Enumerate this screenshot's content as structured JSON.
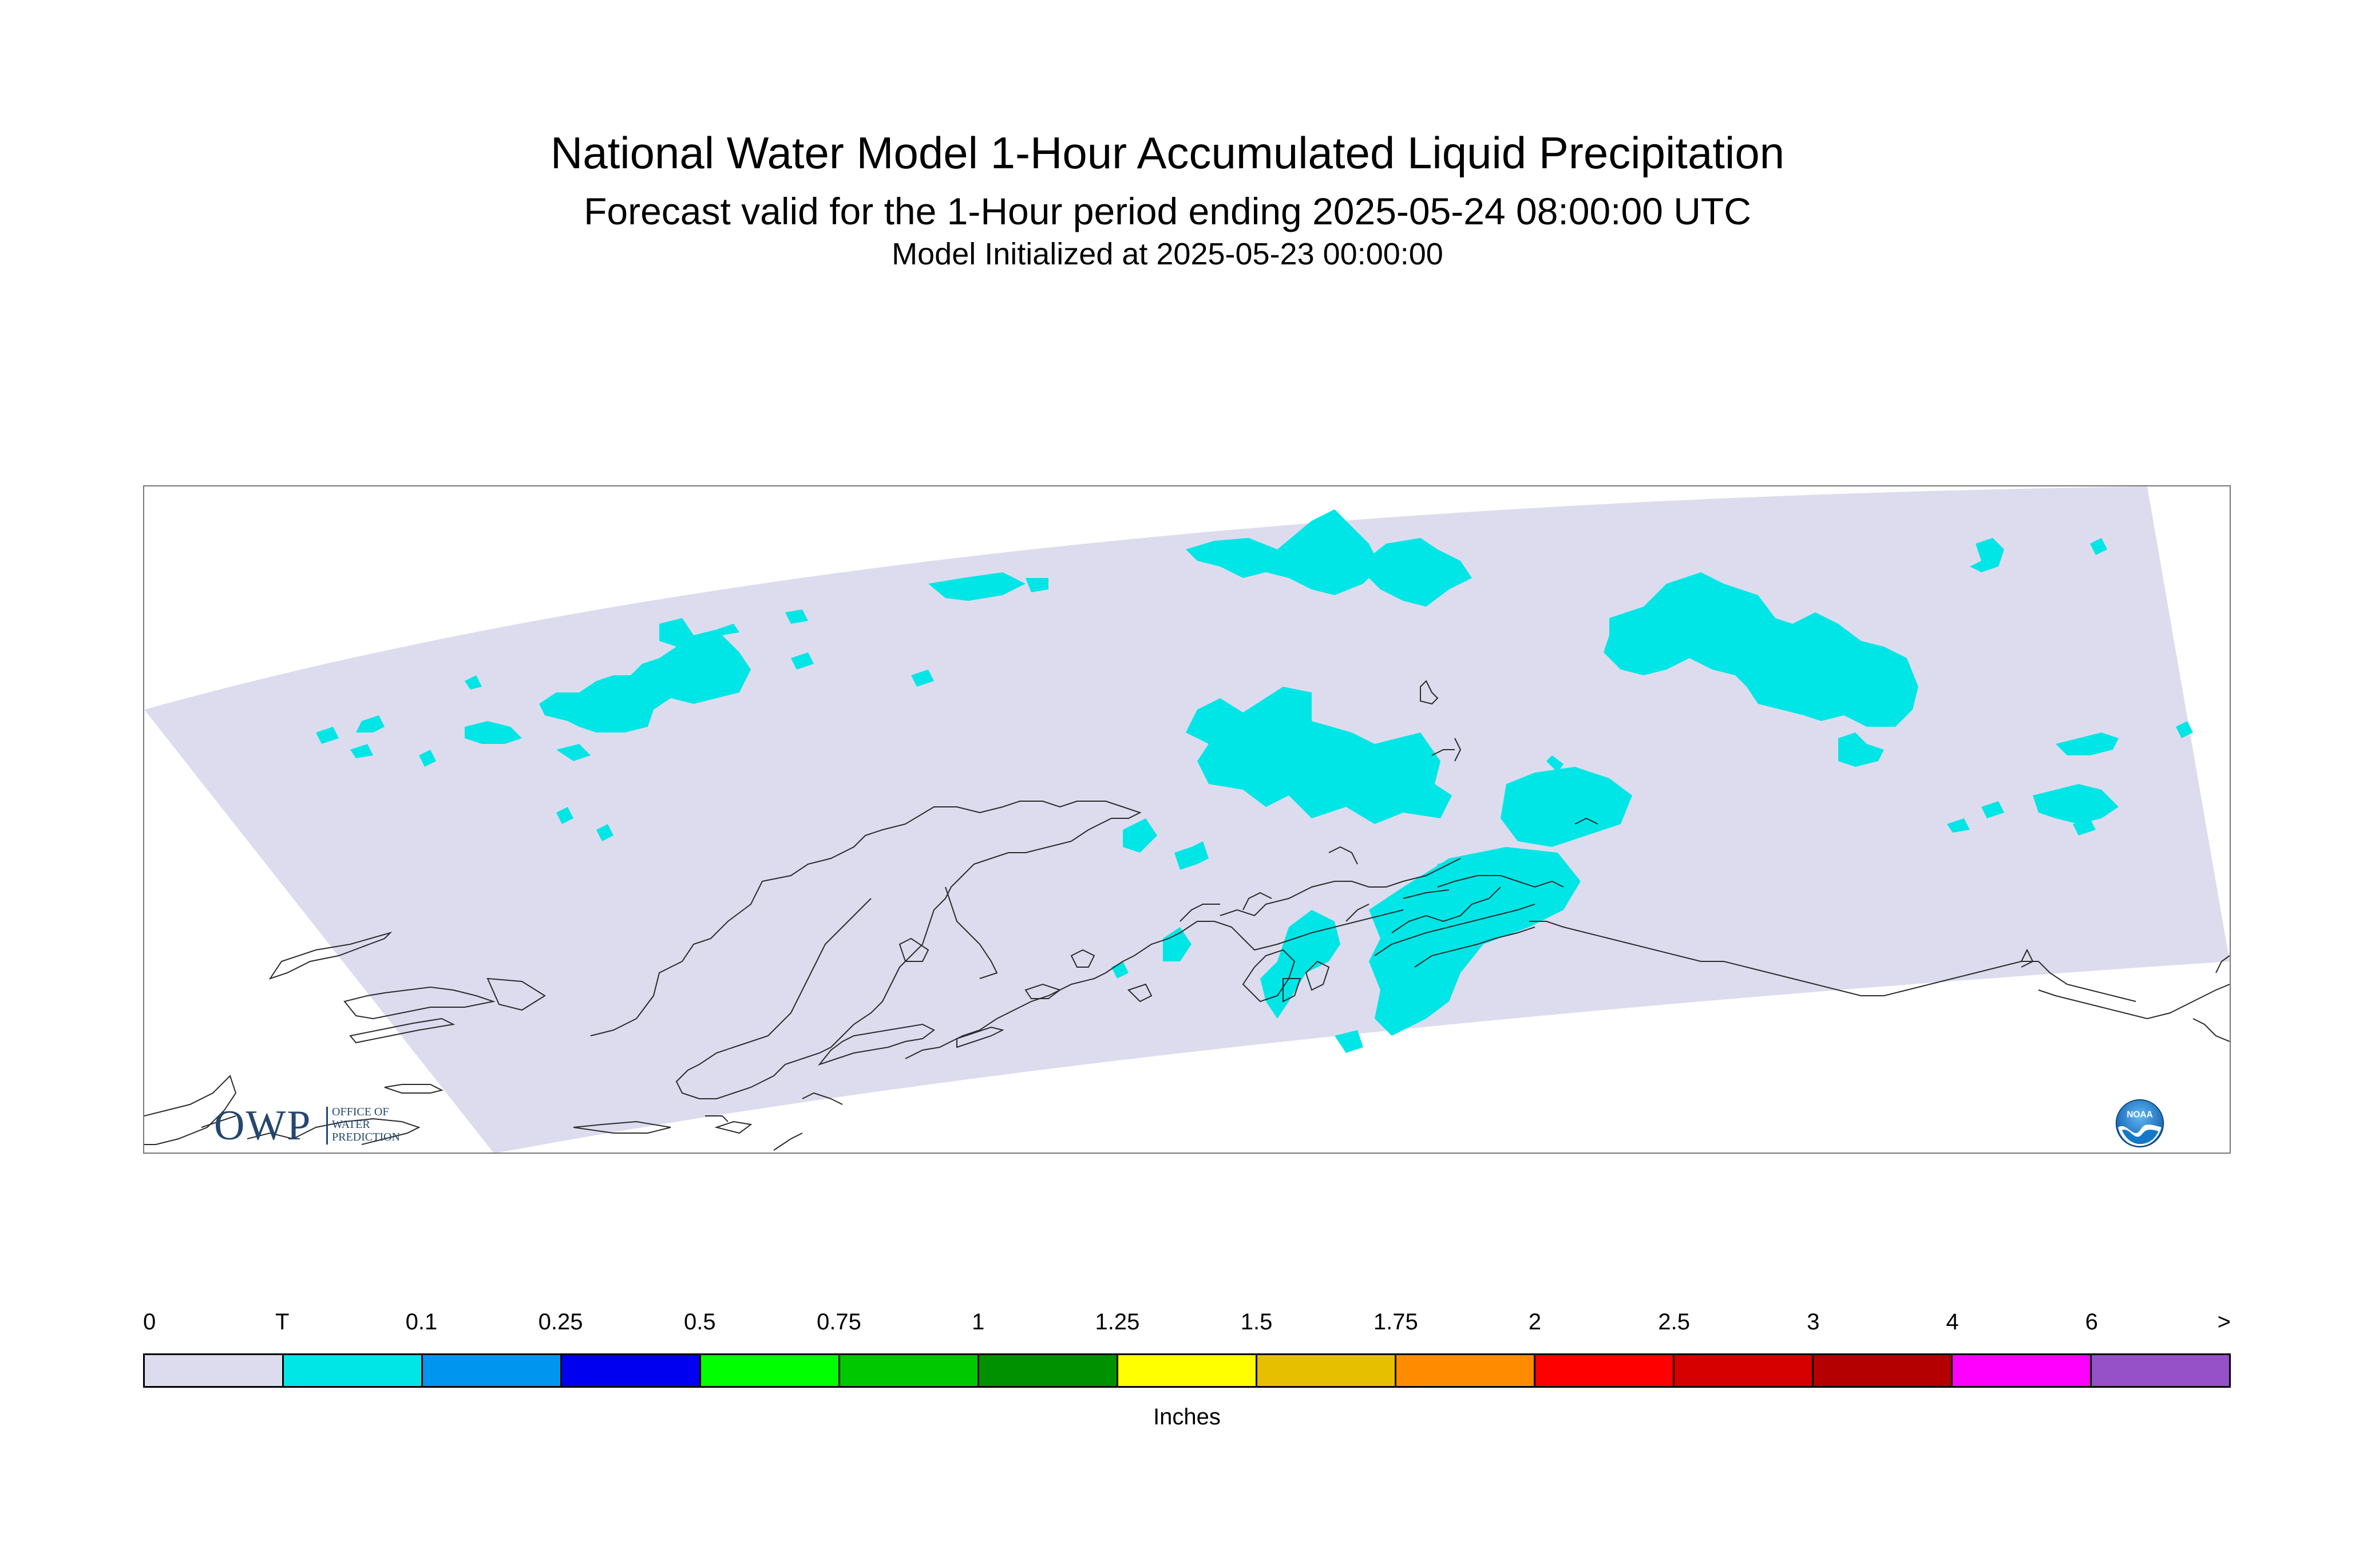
{
  "header": {
    "title": "National Water Model 1-Hour Accumulated Liquid Precipitation",
    "subtitle": "Forecast valid for the 1-Hour period ending 2025-05-24 08:00:00 UTC",
    "init": "Model Initialized at 2025-05-23 00:00:00"
  },
  "map": {
    "region_color": "#dcdcee",
    "precip_color": "#00e6e6",
    "coast_color": "#2b2b2b"
  },
  "logos": {
    "owp": {
      "letters": "OWP",
      "lines": [
        "OFFICE OF",
        "WATER",
        "PREDICTION"
      ],
      "color": "#24476f"
    },
    "noaa": {
      "text": "NOAA",
      "color": "#1478c8"
    }
  },
  "legend": {
    "units": "Inches",
    "ticks": [
      "0",
      "T",
      "0.1",
      "0.25",
      "0.5",
      "0.75",
      "1",
      "1.25",
      "1.5",
      "1.75",
      "2",
      "2.5",
      "3",
      "4",
      "6",
      ">"
    ],
    "bins": [
      {
        "lower": "0",
        "upper": "T",
        "color": "#dcdcee"
      },
      {
        "lower": "T",
        "upper": "0.1",
        "color": "#00e6e6"
      },
      {
        "lower": "0.1",
        "upper": "0.25",
        "color": "#0096f0"
      },
      {
        "lower": "0.25",
        "upper": "0.5",
        "color": "#0000f0"
      },
      {
        "lower": "0.5",
        "upper": "0.75",
        "color": "#00ff00"
      },
      {
        "lower": "0.75",
        "upper": "1",
        "color": "#00c800"
      },
      {
        "lower": "1",
        "upper": "1.25",
        "color": "#009100"
      },
      {
        "lower": "1.25",
        "upper": "1.5",
        "color": "#ffff00"
      },
      {
        "lower": "1.5",
        "upper": "1.75",
        "color": "#e6c000"
      },
      {
        "lower": "1.75",
        "upper": "2",
        "color": "#ff8c00"
      },
      {
        "lower": "2",
        "upper": "2.5",
        "color": "#ff0000"
      },
      {
        "lower": "2.5",
        "upper": "3",
        "color": "#d70000"
      },
      {
        "lower": "3",
        "upper": "4",
        "color": "#b40000"
      },
      {
        "lower": "4",
        "upper": "6",
        "color": "#ff00ff"
      },
      {
        "lower": "6",
        "upper": ">",
        "color": "#9650c8"
      }
    ]
  }
}
